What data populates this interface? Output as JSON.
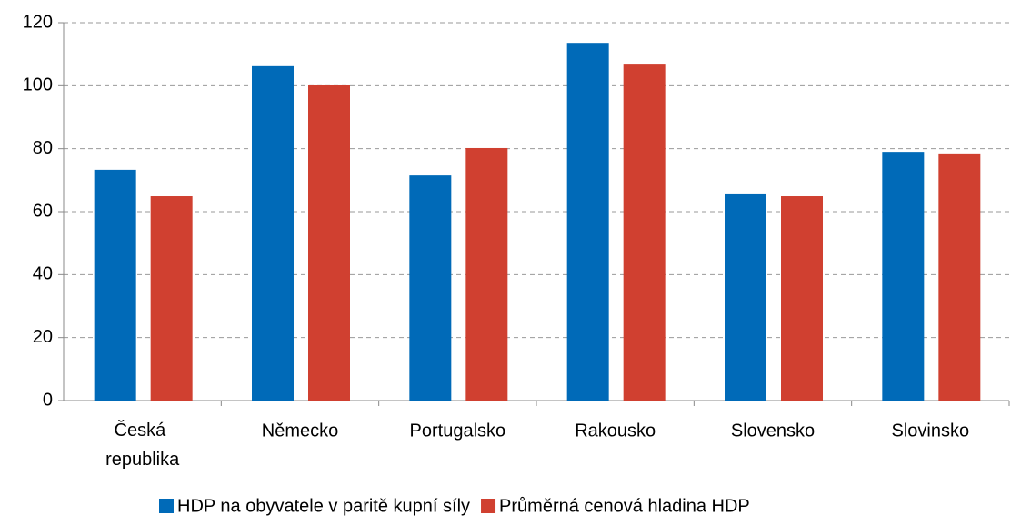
{
  "chart_data": {
    "type": "bar",
    "categories": [
      "Česká republika",
      "Německo",
      "Portugalsko",
      "Rakousko",
      "Slovensko",
      "Slovinsko"
    ],
    "series": [
      {
        "name": "HDP na obyvatele v paritě kupní síly",
        "color": "#006ab8",
        "values": [
          73.3,
          106.2,
          71.5,
          113.6,
          65.5,
          79.0
        ]
      },
      {
        "name": "Průměrná cenová hladina HDP",
        "color": "#d04030",
        "values": [
          64.9,
          100.1,
          80.2,
          106.7,
          64.9,
          78.5
        ]
      }
    ],
    "ylim": [
      0,
      120
    ],
    "yticks": [
      0,
      20,
      40,
      60,
      80,
      100,
      120
    ],
    "grid": true,
    "legend": "bottom"
  }
}
